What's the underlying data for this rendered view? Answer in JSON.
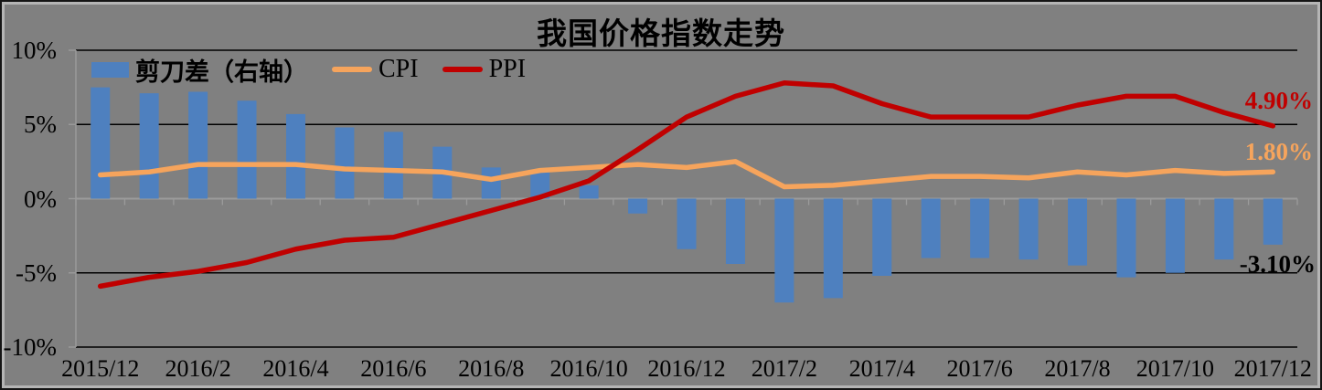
{
  "title": "我国价格指数走势",
  "legend": {
    "items": [
      {
        "label": "剪刀差（右轴）",
        "marker": "bar",
        "color": "#4E80BF"
      },
      {
        "label": "CPI",
        "marker": "line",
        "color": "#F6A45C"
      },
      {
        "label": "PPI",
        "marker": "line",
        "color": "#C00000"
      }
    ]
  },
  "annotations": {
    "ppi_end": "4.90%",
    "cpi_end": "1.80%",
    "gap_end": "-3.10%"
  },
  "colors": {
    "background": "#808080",
    "gridline": "#000000",
    "axis": "#9B9B9B",
    "bar": "#4E80BF",
    "cpi": "#F6A45C",
    "ppi": "#C00000",
    "gap_label": "#000000",
    "title_text": "#000000"
  },
  "chart_data": {
    "type": "combo-bar-line",
    "title": "我国价格指数走势",
    "categories": [
      "2015/12",
      "2016/1",
      "2016/2",
      "2016/3",
      "2016/4",
      "2016/5",
      "2016/6",
      "2016/7",
      "2016/8",
      "2016/9",
      "2016/10",
      "2016/11",
      "2016/12",
      "2017/1",
      "2017/2",
      "2017/3",
      "2017/4",
      "2017/5",
      "2017/6",
      "2017/7",
      "2017/8",
      "2017/9",
      "2017/10",
      "2017/11",
      "2017/12"
    ],
    "series": [
      {
        "name": "剪刀差（右轴）",
        "type": "bar",
        "axis": "right",
        "color": "#4E80BF",
        "values": [
          7.5,
          7.1,
          7.2,
          6.6,
          5.7,
          4.8,
          4.5,
          3.5,
          2.1,
          1.8,
          0.9,
          -1.0,
          -3.4,
          -4.4,
          -7.0,
          -6.7,
          -5.2,
          -4.0,
          -4.0,
          -4.1,
          -4.5,
          -5.3,
          -5.0,
          -4.1,
          -3.1
        ]
      },
      {
        "name": "CPI",
        "type": "line",
        "axis": "left",
        "color": "#F6A45C",
        "values": [
          1.6,
          1.8,
          2.3,
          2.3,
          2.3,
          2.0,
          1.9,
          1.8,
          1.3,
          1.9,
          2.1,
          2.3,
          2.1,
          2.5,
          0.8,
          0.9,
          1.2,
          1.5,
          1.5,
          1.4,
          1.8,
          1.6,
          1.9,
          1.7,
          1.8
        ]
      },
      {
        "name": "PPI",
        "type": "line",
        "axis": "left",
        "color": "#C00000",
        "values": [
          -5.9,
          -5.3,
          -4.9,
          -4.3,
          -3.4,
          -2.8,
          -2.6,
          -1.7,
          -0.8,
          0.1,
          1.2,
          3.3,
          5.5,
          6.9,
          7.8,
          7.6,
          6.4,
          5.5,
          5.5,
          5.5,
          6.3,
          6.9,
          6.9,
          5.8,
          4.9
        ]
      }
    ],
    "y_axis": {
      "range": [
        -10,
        10
      ],
      "ticks": [
        {
          "label": "10%",
          "value": 10
        },
        {
          "label": "5%",
          "value": 5
        },
        {
          "label": "0%",
          "value": 0
        },
        {
          "label": "-5%",
          "value": -5
        },
        {
          "label": "-10%",
          "value": -10
        }
      ]
    },
    "x_axis": {
      "label_every": 2
    },
    "grid": true,
    "legend_position": "top-inside-left",
    "end_labels": [
      {
        "series": "PPI",
        "text": "4.90%",
        "value": 4.9
      },
      {
        "series": "CPI",
        "text": "1.80%",
        "value": 1.8
      },
      {
        "series": "剪刀差（右轴）",
        "text": "-3.10%",
        "value": -3.1
      }
    ]
  }
}
